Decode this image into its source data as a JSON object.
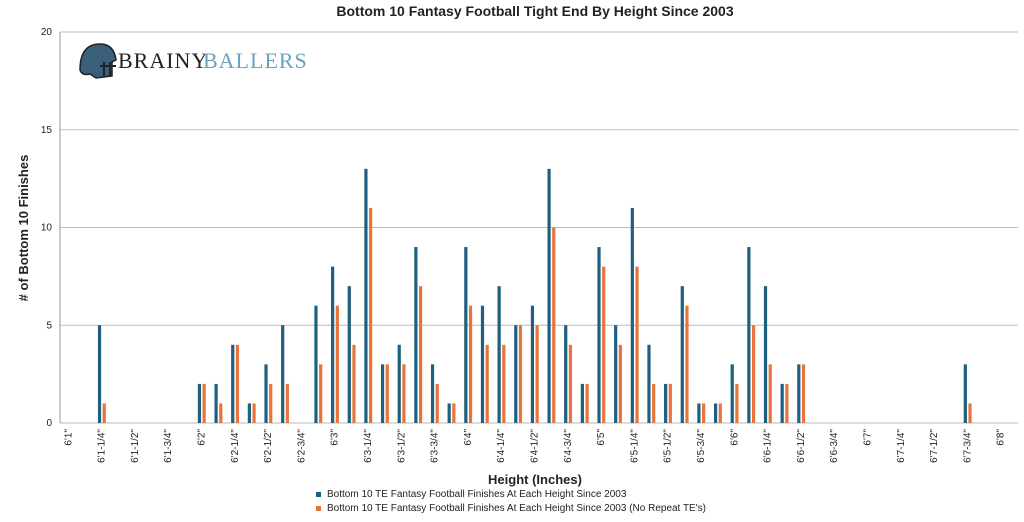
{
  "logo": [
    "BRAINY",
    "BALLERS"
  ],
  "chart_data": {
    "type": "bar",
    "title": "Bottom 10 Fantasy Football Tight End By Height Since 2003",
    "x_label": "Height (Inches)",
    "y_label": "# of Bottom 10 Finishes",
    "categories": [
      "6'1\"",
      null,
      "6'1-1/4\"",
      null,
      "6'1-1/2\"",
      null,
      "6'1-3/4\"",
      null,
      "6'2\"",
      null,
      "6'2-1/4\"",
      null,
      "6'2-1/2\"",
      null,
      "6'2-3/4\"",
      null,
      "6'3\"",
      null,
      "6'3-1/4\"",
      null,
      "6'3-1/2\"",
      null,
      "6'3-3/4\"",
      null,
      "6'4\"",
      null,
      "6'4-1/4\"",
      null,
      "6'4-1/2\"",
      null,
      "6'4-3/4\"",
      null,
      "6'5\"",
      null,
      "6'5-1/4\"",
      null,
      "6'5-1/2\"",
      null,
      "6'5-3/4\"",
      null,
      "6'6\"",
      null,
      "6'6-1/4\"",
      null,
      "6'6-1/2\"",
      null,
      "6'6-3/4\"",
      null,
      "6'7\"",
      null,
      "6'7-1/4\"",
      null,
      "6'7-1/2\"",
      null,
      "6'7-3/4\"",
      null,
      "6'8\""
    ],
    "series": [
      {
        "name": "Bottom 10 TE Fantasy Football Finishes At Each Height Since 2003",
        "color": "#1f5f7f",
        "values": [
          0,
          0,
          5,
          0,
          0,
          0,
          0,
          0,
          2,
          2,
          4,
          1,
          3,
          5,
          0,
          6,
          8,
          7,
          13,
          3,
          4,
          9,
          3,
          1,
          9,
          6,
          7,
          5,
          6,
          13,
          5,
          2,
          9,
          5,
          11,
          4,
          2,
          7,
          1,
          1,
          3,
          9,
          7,
          2,
          3,
          0,
          0,
          0,
          0,
          0,
          0,
          0,
          0,
          0,
          3,
          0,
          0
        ]
      },
      {
        "name": "Bottom 10 TE Fantasy Football Finishes At Each Height Since 2003 (No Repeat TE's)",
        "color": "#e8743b",
        "values": [
          0,
          0,
          1,
          0,
          0,
          0,
          0,
          0,
          2,
          1,
          4,
          1,
          2,
          2,
          0,
          3,
          6,
          4,
          11,
          3,
          3,
          7,
          2,
          1,
          6,
          4,
          4,
          5,
          5,
          10,
          4,
          2,
          8,
          4,
          8,
          2,
          2,
          6,
          1,
          1,
          2,
          5,
          3,
          2,
          3,
          0,
          0,
          0,
          0,
          0,
          0,
          0,
          0,
          0,
          1,
          0,
          0
        ]
      }
    ],
    "ylim": [
      0,
      20
    ],
    "yticks": [
      0,
      5,
      10,
      15,
      20
    ],
    "grid": true
  }
}
